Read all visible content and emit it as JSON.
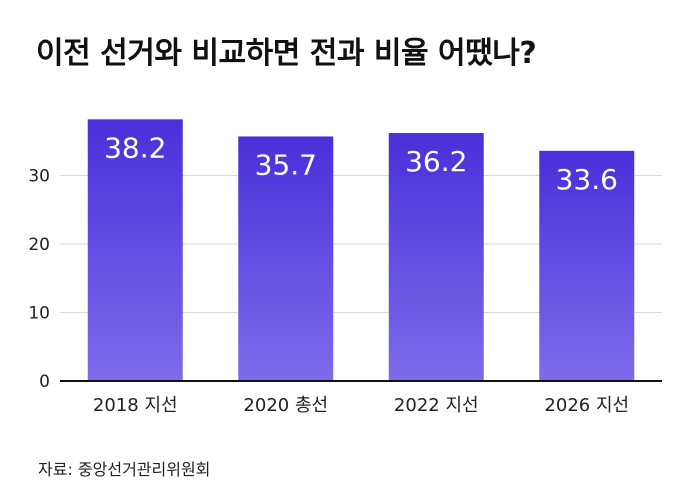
{
  "title": "이전 선거와 비교하면 전과 비율 어땠나?",
  "source": "자료: 중앙선거관리위원회",
  "colors": {
    "bar_top": "#4A2FD9",
    "bar_bottom": "#7E6BEA",
    "value_label": "#ffffff",
    "grid": "#d9d9d9",
    "axis": "#111111"
  },
  "chart_data": {
    "type": "bar",
    "categories": [
      "2018 지선",
      "2020 총선",
      "2022 지선",
      "2026 지선"
    ],
    "values": [
      38.2,
      35.7,
      36.2,
      33.6
    ],
    "value_labels": [
      "38.2",
      "35.7",
      "36.2",
      "33.6"
    ],
    "yticks": [
      0,
      10,
      20,
      30
    ],
    "ytick_labels": [
      "0",
      "10",
      "20",
      "30"
    ],
    "ylim": [
      0,
      39
    ],
    "grid": true,
    "title": "이전 선거와 비교하면 전과 비율 어땠나?",
    "xlabel": "",
    "ylabel": ""
  }
}
